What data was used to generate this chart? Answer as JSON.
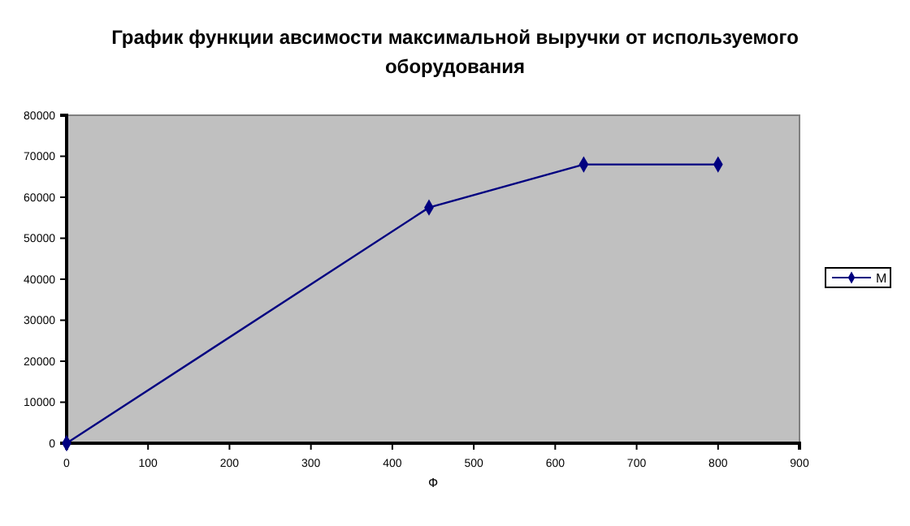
{
  "chart_data": {
    "type": "line",
    "title": "График функции авсимости максимальной выручки от используемого оборудования",
    "xlabel": "Ф",
    "series": [
      {
        "name": "М",
        "color": "#000080",
        "x": [
          0,
          445,
          635,
          800
        ],
        "values": [
          0,
          57500,
          68000,
          68000
        ]
      }
    ],
    "xlim": [
      0,
      900
    ],
    "xticks": [
      0,
      100,
      200,
      300,
      400,
      500,
      600,
      700,
      800,
      900
    ],
    "ylim": [
      0,
      80000
    ],
    "yticks": [
      0,
      10000,
      20000,
      30000,
      40000,
      50000,
      60000,
      70000,
      80000
    ],
    "marker": "diamond",
    "legend": "right",
    "grid": false
  }
}
